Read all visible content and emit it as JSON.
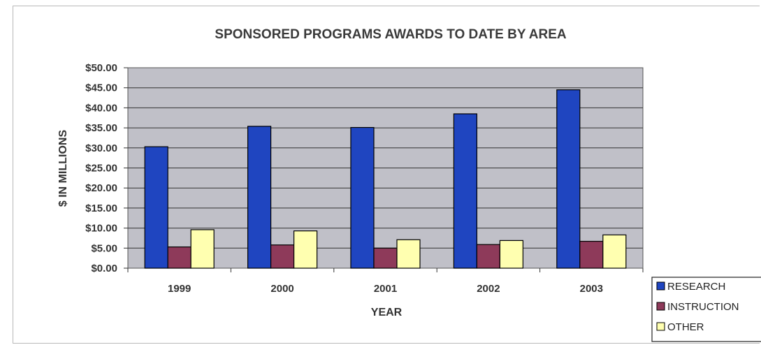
{
  "chart_data": {
    "type": "bar",
    "title": "SPONSORED PROGRAMS AWARDS TO DATE BY AREA",
    "xlabel": "YEAR",
    "ylabel": "$ IN MILLIONS",
    "categories": [
      "1999",
      "2000",
      "2001",
      "2002",
      "2003"
    ],
    "series": [
      {
        "name": "RESEARCH",
        "color": "#1f45c0",
        "values": [
          30.3,
          35.4,
          35.1,
          38.5,
          44.5
        ]
      },
      {
        "name": "INSTRUCTION",
        "color": "#8e3a5a",
        "values": [
          5.3,
          5.8,
          5.0,
          5.9,
          6.7
        ]
      },
      {
        "name": "OTHER",
        "color": "#ffffb0",
        "values": [
          9.6,
          9.3,
          7.1,
          6.9,
          8.3
        ]
      }
    ],
    "ylim": [
      0,
      50
    ],
    "yticks": [
      "$0.00",
      "$5.00",
      "$10.00",
      "$15.00",
      "$20.00",
      "$25.00",
      "$30.00",
      "$35.00",
      "$40.00",
      "$45.00",
      "$50.00"
    ],
    "grid": true,
    "plot_background": "#c0c0c8",
    "legend_position": "bottom-right"
  }
}
